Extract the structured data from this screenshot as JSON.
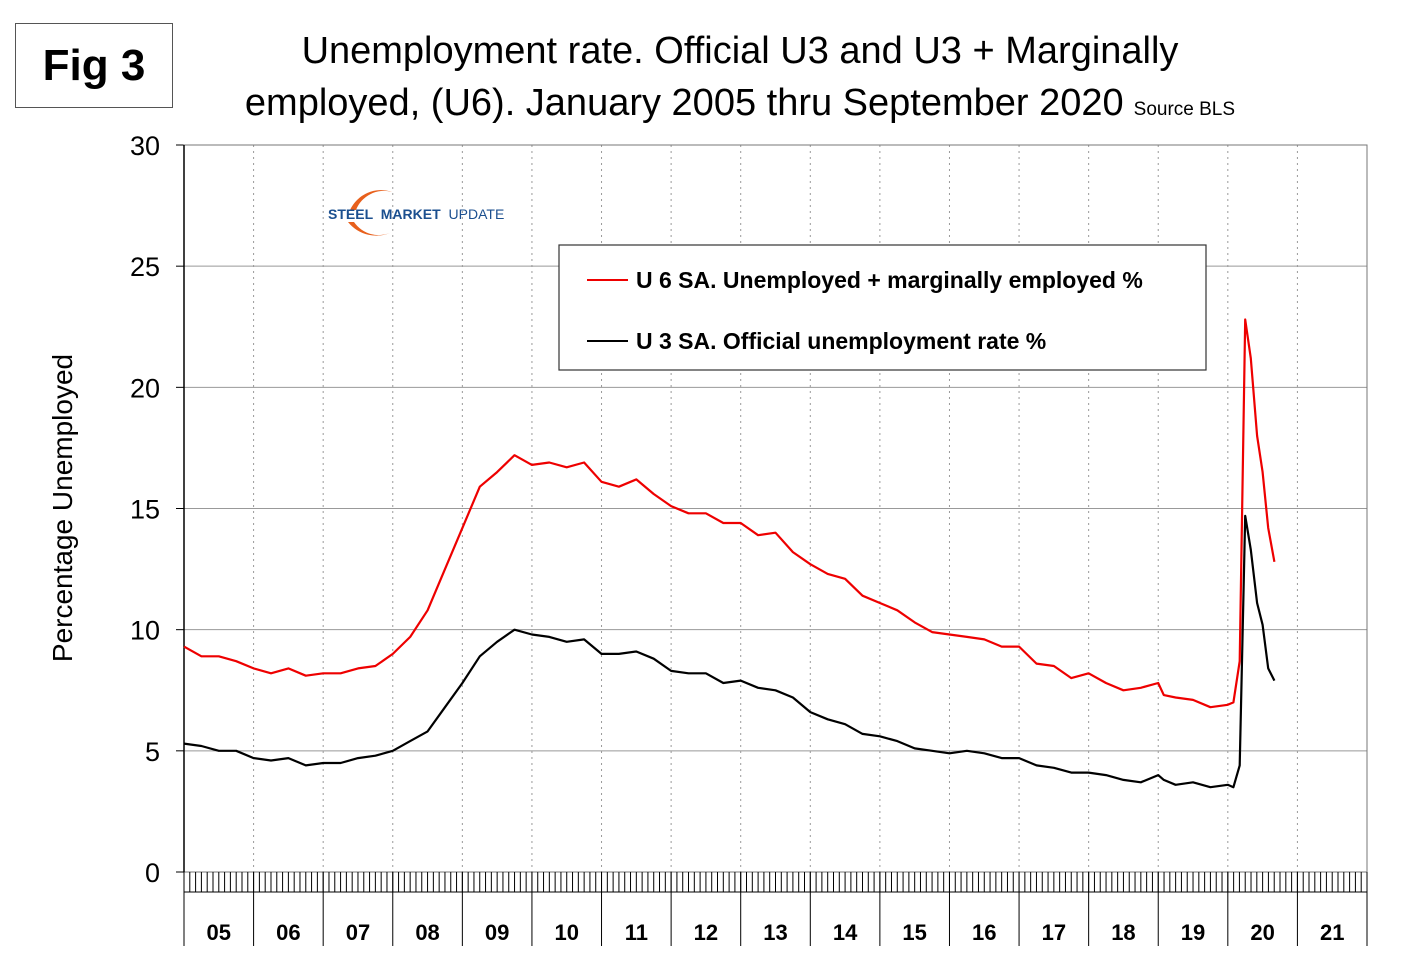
{
  "figure_label": "Fig 3",
  "title_line1": "Unemployment rate. Official U3 and U3 + Marginally",
  "title_line2": "employed, (U6). January 2005 thru September 2020",
  "source_note": "Source BLS",
  "logo": {
    "text_bold": "STEEL",
    "text_accent": "MARKET",
    "text_plain": "UPDATE"
  },
  "colors": {
    "u6": "#ee0000",
    "u3": "#000000",
    "grid": "#999999",
    "logo_blue": "#1b4f8f",
    "logo_orange": "#e8601c"
  },
  "chart_data": {
    "type": "line",
    "ylabel": "Percentage Unemployed",
    "ylim": [
      0,
      30
    ],
    "yticks": [
      0,
      5,
      10,
      15,
      20,
      25,
      30
    ],
    "x_unit": "year",
    "xlim": [
      2005.0,
      2022.0
    ],
    "year_labels": [
      "05",
      "06",
      "07",
      "08",
      "09",
      "10",
      "11",
      "12",
      "13",
      "14",
      "15",
      "16",
      "17",
      "18",
      "19",
      "20",
      "21"
    ],
    "grid": true,
    "legend_position": "top-right",
    "series": [
      {
        "name": "U 6 SA. Unemployed + marginally employed %",
        "color": "#ee0000",
        "points": [
          [
            2005.0,
            9.3
          ],
          [
            2005.25,
            8.9
          ],
          [
            2005.5,
            8.9
          ],
          [
            2005.75,
            8.7
          ],
          [
            2006.0,
            8.4
          ],
          [
            2006.25,
            8.2
          ],
          [
            2006.5,
            8.4
          ],
          [
            2006.75,
            8.1
          ],
          [
            2007.0,
            8.2
          ],
          [
            2007.25,
            8.2
          ],
          [
            2007.5,
            8.4
          ],
          [
            2007.75,
            8.5
          ],
          [
            2008.0,
            9.0
          ],
          [
            2008.25,
            9.7
          ],
          [
            2008.5,
            10.8
          ],
          [
            2008.75,
            12.5
          ],
          [
            2009.0,
            14.2
          ],
          [
            2009.25,
            15.9
          ],
          [
            2009.5,
            16.5
          ],
          [
            2009.75,
            17.2
          ],
          [
            2010.0,
            16.8
          ],
          [
            2010.25,
            16.9
          ],
          [
            2010.5,
            16.7
          ],
          [
            2010.75,
            16.9
          ],
          [
            2011.0,
            16.1
          ],
          [
            2011.25,
            15.9
          ],
          [
            2011.5,
            16.2
          ],
          [
            2011.75,
            15.6
          ],
          [
            2012.0,
            15.1
          ],
          [
            2012.25,
            14.8
          ],
          [
            2012.5,
            14.8
          ],
          [
            2012.75,
            14.4
          ],
          [
            2013.0,
            14.4
          ],
          [
            2013.25,
            13.9
          ],
          [
            2013.5,
            14.0
          ],
          [
            2013.75,
            13.2
          ],
          [
            2014.0,
            12.7
          ],
          [
            2014.25,
            12.3
          ],
          [
            2014.5,
            12.1
          ],
          [
            2014.75,
            11.4
          ],
          [
            2015.0,
            11.1
          ],
          [
            2015.25,
            10.8
          ],
          [
            2015.5,
            10.3
          ],
          [
            2015.75,
            9.9
          ],
          [
            2016.0,
            9.8
          ],
          [
            2016.25,
            9.7
          ],
          [
            2016.5,
            9.6
          ],
          [
            2016.75,
            9.3
          ],
          [
            2017.0,
            9.3
          ],
          [
            2017.25,
            8.6
          ],
          [
            2017.5,
            8.5
          ],
          [
            2017.75,
            8.0
          ],
          [
            2018.0,
            8.2
          ],
          [
            2018.25,
            7.8
          ],
          [
            2018.5,
            7.5
          ],
          [
            2018.75,
            7.6
          ],
          [
            2019.0,
            7.8
          ],
          [
            2019.08,
            7.3
          ],
          [
            2019.25,
            7.2
          ],
          [
            2019.5,
            7.1
          ],
          [
            2019.75,
            6.8
          ],
          [
            2020.0,
            6.9
          ],
          [
            2020.08,
            7.0
          ],
          [
            2020.17,
            8.7
          ],
          [
            2020.25,
            22.8
          ],
          [
            2020.33,
            21.2
          ],
          [
            2020.42,
            18.0
          ],
          [
            2020.5,
            16.5
          ],
          [
            2020.58,
            14.2
          ],
          [
            2020.67,
            12.8
          ]
        ]
      },
      {
        "name": "U 3 SA. Official unemployment rate %",
        "color": "#000000",
        "points": [
          [
            2005.0,
            5.3
          ],
          [
            2005.25,
            5.2
          ],
          [
            2005.5,
            5.0
          ],
          [
            2005.75,
            5.0
          ],
          [
            2006.0,
            4.7
          ],
          [
            2006.25,
            4.6
          ],
          [
            2006.5,
            4.7
          ],
          [
            2006.75,
            4.4
          ],
          [
            2007.0,
            4.5
          ],
          [
            2007.25,
            4.5
          ],
          [
            2007.5,
            4.7
          ],
          [
            2007.75,
            4.8
          ],
          [
            2008.0,
            5.0
          ],
          [
            2008.25,
            5.4
          ],
          [
            2008.5,
            5.8
          ],
          [
            2008.75,
            6.8
          ],
          [
            2009.0,
            7.8
          ],
          [
            2009.25,
            8.9
          ],
          [
            2009.5,
            9.5
          ],
          [
            2009.75,
            10.0
          ],
          [
            2010.0,
            9.8
          ],
          [
            2010.25,
            9.7
          ],
          [
            2010.5,
            9.5
          ],
          [
            2010.75,
            9.6
          ],
          [
            2011.0,
            9.0
          ],
          [
            2011.25,
            9.0
          ],
          [
            2011.5,
            9.1
          ],
          [
            2011.75,
            8.8
          ],
          [
            2012.0,
            8.3
          ],
          [
            2012.25,
            8.2
          ],
          [
            2012.5,
            8.2
          ],
          [
            2012.75,
            7.8
          ],
          [
            2013.0,
            7.9
          ],
          [
            2013.25,
            7.6
          ],
          [
            2013.5,
            7.5
          ],
          [
            2013.75,
            7.2
          ],
          [
            2014.0,
            6.6
          ],
          [
            2014.25,
            6.3
          ],
          [
            2014.5,
            6.1
          ],
          [
            2014.75,
            5.7
          ],
          [
            2015.0,
            5.6
          ],
          [
            2015.25,
            5.4
          ],
          [
            2015.5,
            5.1
          ],
          [
            2015.75,
            5.0
          ],
          [
            2016.0,
            4.9
          ],
          [
            2016.25,
            5.0
          ],
          [
            2016.5,
            4.9
          ],
          [
            2016.75,
            4.7
          ],
          [
            2017.0,
            4.7
          ],
          [
            2017.25,
            4.4
          ],
          [
            2017.5,
            4.3
          ],
          [
            2017.75,
            4.1
          ],
          [
            2018.0,
            4.1
          ],
          [
            2018.25,
            4.0
          ],
          [
            2018.5,
            3.8
          ],
          [
            2018.75,
            3.7
          ],
          [
            2019.0,
            4.0
          ],
          [
            2019.08,
            3.8
          ],
          [
            2019.25,
            3.6
          ],
          [
            2019.5,
            3.7
          ],
          [
            2019.75,
            3.5
          ],
          [
            2020.0,
            3.6
          ],
          [
            2020.08,
            3.5
          ],
          [
            2020.17,
            4.4
          ],
          [
            2020.25,
            14.7
          ],
          [
            2020.33,
            13.3
          ],
          [
            2020.42,
            11.1
          ],
          [
            2020.5,
            10.2
          ],
          [
            2020.58,
            8.4
          ],
          [
            2020.67,
            7.9
          ]
        ]
      }
    ]
  }
}
